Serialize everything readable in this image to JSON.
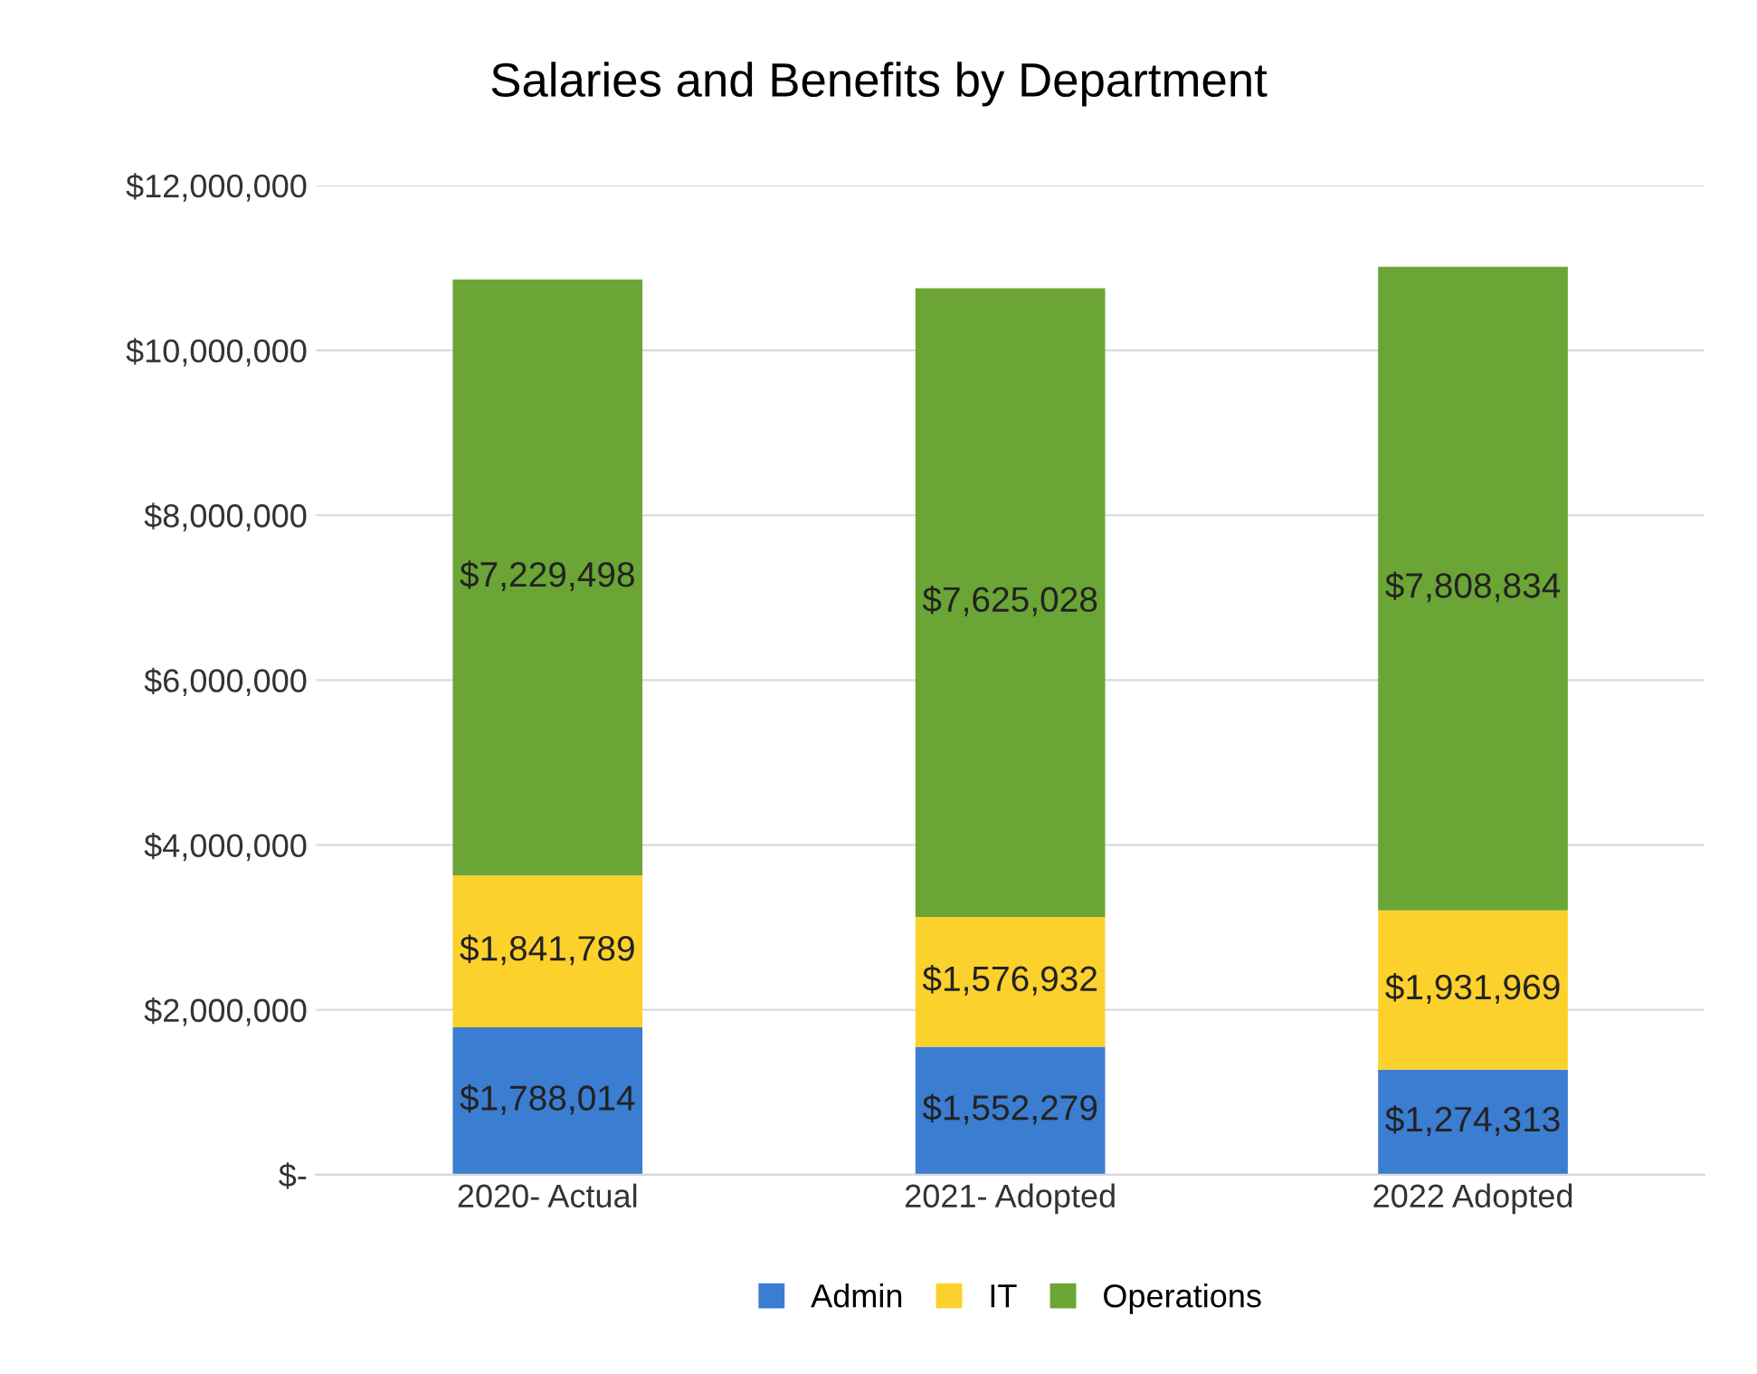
{
  "chart_data": {
    "type": "bar",
    "title": "Salaries and Benefits by Department",
    "categories": [
      "2020- Actual",
      "2021- Adopted",
      "2022 Adopted"
    ],
    "stacked": true,
    "series": [
      {
        "name": "Admin",
        "color": "#3b7dd0",
        "values": [
          1788014,
          1552279,
          1274313
        ],
        "value_labels": [
          "$1,788,014",
          "$1,552,279",
          "$1,274,313"
        ]
      },
      {
        "name": "IT",
        "color": "#fdd12b",
        "values": [
          1841789,
          1576932,
          1931969
        ],
        "value_labels": [
          "$1,841,789",
          "$1,576,932",
          "$1,931,969"
        ]
      },
      {
        "name": "Operations",
        "color": "#6ba535",
        "values": [
          7229498,
          7625028,
          7808834
        ],
        "value_labels": [
          "$7,229,498",
          "$7,625,028",
          "$7,808,834"
        ]
      }
    ],
    "ylim": [
      0,
      12000000
    ],
    "yticks": [
      {
        "value": 0,
        "label": "$-"
      },
      {
        "value": 2000000,
        "label": "$2,000,000"
      },
      {
        "value": 4000000,
        "label": "$4,000,000"
      },
      {
        "value": 6000000,
        "label": "$6,000,000"
      },
      {
        "value": 8000000,
        "label": "$8,000,000"
      },
      {
        "value": 10000000,
        "label": "$10,000,000"
      },
      {
        "value": 12000000,
        "label": "$12,000,000"
      }
    ],
    "grid": "y",
    "legend": "bottom"
  }
}
